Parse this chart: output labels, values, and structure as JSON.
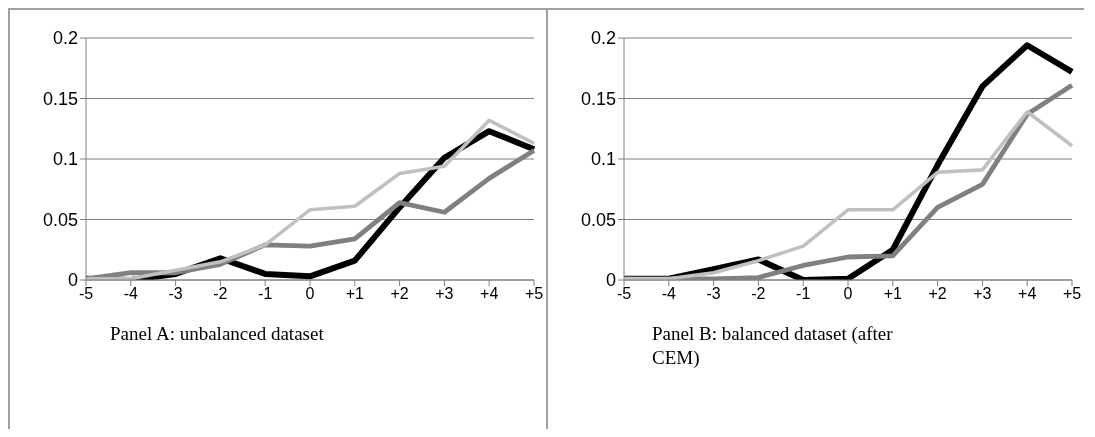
{
  "chart_data": [
    {
      "type": "line",
      "title": "Panel A: unbalanced dataset",
      "categories": [
        "-5",
        "-4",
        "-3",
        "-2",
        "-1",
        "0",
        "+1",
        "+2",
        "+3",
        "+4",
        "+5"
      ],
      "series": [
        {
          "color": "#000000",
          "values": [
            0.001,
            0.0,
            0.005,
            0.018,
            0.005,
            0.003,
            0.016,
            0.06,
            0.101,
            0.123,
            0.108
          ]
        },
        {
          "color": "#808080",
          "values": [
            0.001,
            0.006,
            0.006,
            0.013,
            0.029,
            0.028,
            0.034,
            0.064,
            0.056,
            0.084,
            0.107
          ]
        },
        {
          "color": "#c0c0c0",
          "values": [
            0.001,
            0.001,
            0.008,
            0.015,
            0.029,
            0.058,
            0.061,
            0.088,
            0.094,
            0.132,
            0.113
          ]
        }
      ],
      "ylim": [
        0,
        0.2
      ],
      "yticks": [
        0,
        0.05,
        0.1,
        0.15,
        0.2
      ],
      "grid": "y",
      "legend": false,
      "marker": "none",
      "line_style": "solid"
    },
    {
      "type": "line",
      "title": "Panel B: balanced dataset (after CEM)",
      "categories": [
        "-5",
        "-4",
        "-3",
        "-2",
        "-1",
        "0",
        "+1",
        "+2",
        "+3",
        "+4",
        "+5"
      ],
      "series": [
        {
          "color": "#000000",
          "values": [
            0.001,
            0.001,
            0.009,
            0.017,
            0.0,
            0.001,
            0.025,
            0.095,
            0.16,
            0.194,
            0.172
          ]
        },
        {
          "color": "#808080",
          "values": [
            0.001,
            0.001,
            0.001,
            0.002,
            0.012,
            0.019,
            0.02,
            0.06,
            0.079,
            0.137,
            0.161
          ]
        },
        {
          "color": "#c0c0c0",
          "values": [
            0.001,
            0.001,
            0.006,
            0.016,
            0.028,
            0.058,
            0.058,
            0.089,
            0.091,
            0.139,
            0.111
          ]
        }
      ],
      "ylim": [
        0,
        0.2
      ],
      "yticks": [
        0,
        0.05,
        0.1,
        0.15,
        0.2
      ],
      "grid": "y",
      "legend": false,
      "marker": "none",
      "line_style": "solid"
    }
  ]
}
